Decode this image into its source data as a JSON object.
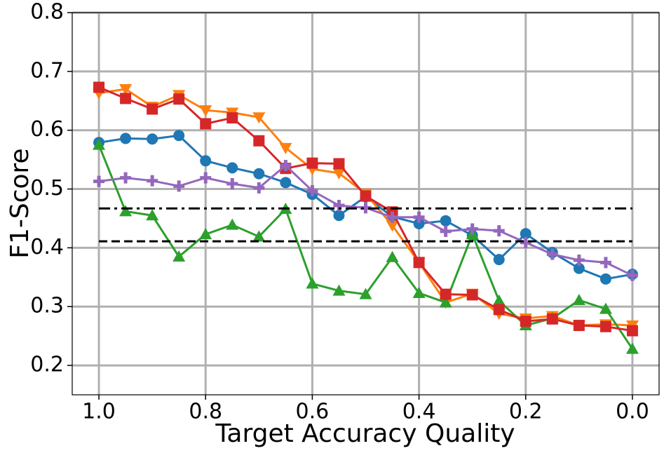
{
  "chart_data": {
    "type": "line",
    "x_label": "Target Accuracy Quality",
    "y_label": "F1-Score",
    "xlim": [
      1.05,
      -0.05
    ],
    "ylim": [
      0.15,
      0.8
    ],
    "xticks": [
      {
        "value": 1,
        "label": "1.0"
      },
      0.8,
      0.6,
      0.4,
      0.2,
      {
        "value": 0,
        "label": "0.0"
      }
    ],
    "yticks": [
      0.2,
      0.3,
      0.4,
      0.5,
      0.6,
      0.7,
      0.8
    ],
    "grid": true,
    "x": [
      1.0,
      0.95,
      0.9,
      0.85,
      0.8,
      0.75,
      0.7,
      0.65,
      0.6,
      0.55,
      0.5,
      0.45,
      0.4,
      0.35,
      0.3,
      0.25,
      0.2,
      0.15,
      0.1,
      0.05,
      0.0
    ],
    "series": [
      {
        "color": "#1f77b4",
        "marker": "circle",
        "values": [
          0.579,
          0.586,
          0.585,
          0.591,
          0.548,
          0.536,
          0.526,
          0.511,
          0.491,
          0.455,
          0.487,
          0.453,
          0.441,
          0.446,
          0.421,
          0.38,
          0.424,
          0.392,
          0.365,
          0.347,
          0.355
        ]
      },
      {
        "color": "#ff7f0e",
        "marker": "triangle-down",
        "values": [
          0.663,
          0.67,
          0.64,
          0.66,
          0.634,
          0.63,
          0.622,
          0.57,
          0.534,
          0.527,
          0.492,
          0.438,
          0.375,
          0.307,
          0.322,
          0.288,
          0.28,
          0.284,
          0.268,
          0.27,
          0.268
        ]
      },
      {
        "color": "#2ca02c",
        "marker": "triangle-up",
        "values": [
          0.575,
          0.462,
          0.455,
          0.385,
          0.423,
          0.439,
          0.419,
          0.466,
          0.339,
          0.327,
          0.321,
          0.384,
          0.323,
          0.307,
          0.423,
          0.31,
          0.268,
          0.28,
          0.311,
          0.296,
          0.228
        ]
      },
      {
        "color": "#d62728",
        "marker": "square",
        "values": [
          0.673,
          0.654,
          0.636,
          0.653,
          0.611,
          0.621,
          0.582,
          0.535,
          0.544,
          0.543,
          0.488,
          0.461,
          0.375,
          0.321,
          0.32,
          0.295,
          0.275,
          0.279,
          0.268,
          0.266,
          0.259
        ]
      },
      {
        "color": "#9467bd",
        "marker": "plus",
        "values": [
          0.513,
          0.519,
          0.514,
          0.505,
          0.519,
          0.509,
          0.502,
          0.54,
          0.497,
          0.472,
          0.468,
          0.452,
          0.452,
          0.428,
          0.432,
          0.429,
          0.409,
          0.389,
          0.379,
          0.375,
          0.353
        ]
      },
      {
        "color": "#000000",
        "linestyle": "dashdot",
        "x": [
          1.0,
          0.0
        ],
        "values": [
          0.467,
          0.467
        ]
      },
      {
        "color": "#000000",
        "linestyle": "dashed",
        "x": [
          1.0,
          0.0
        ],
        "values": [
          0.411,
          0.411
        ]
      }
    ]
  }
}
